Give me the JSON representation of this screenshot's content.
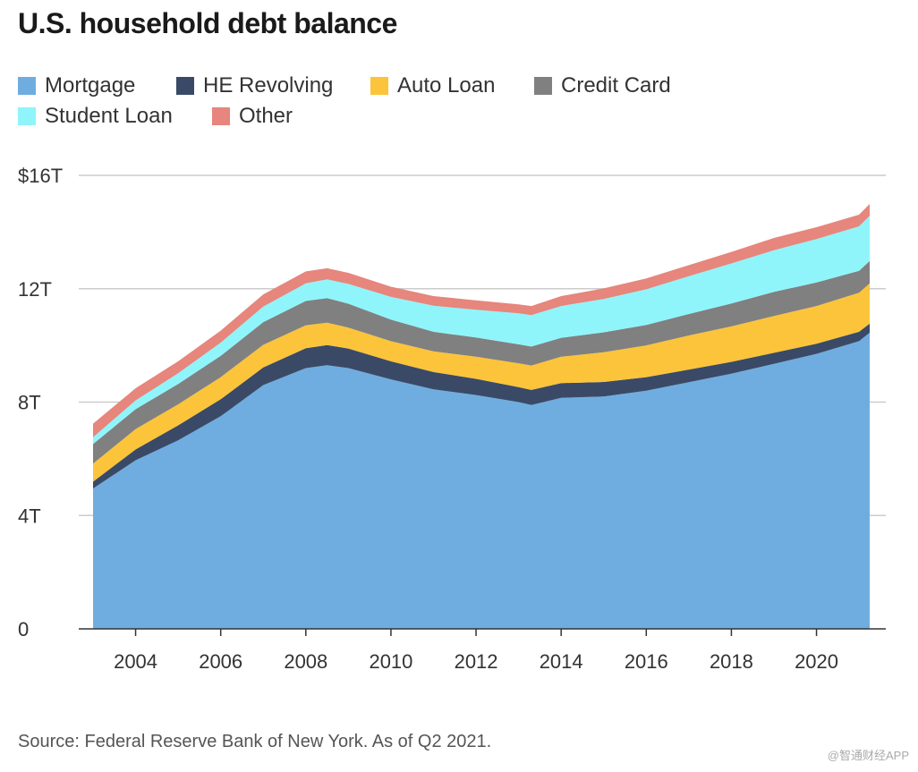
{
  "chart_data": {
    "type": "area",
    "stacked": true,
    "title": "U.S. household debt balance",
    "xlabel": "",
    "ylabel": "",
    "ylim": [
      0,
      16
    ],
    "xlim": [
      2003.0,
      2021.25
    ],
    "yticks": [
      0,
      4,
      8,
      12,
      16
    ],
    "ytick_labels": [
      "0",
      "4T",
      "8T",
      "12T",
      "$16T"
    ],
    "xticks": [
      2004,
      2006,
      2008,
      2010,
      2012,
      2014,
      2016,
      2018,
      2020
    ],
    "xtick_labels": [
      "2004",
      "2006",
      "2008",
      "2010",
      "2012",
      "2014",
      "2016",
      "2018",
      "2020"
    ],
    "x": [
      2003.0,
      2004.0,
      2005.0,
      2006.0,
      2007.0,
      2008.0,
      2008.5,
      2009.0,
      2010.0,
      2011.0,
      2012.0,
      2013.0,
      2013.3,
      2014.0,
      2015.0,
      2016.0,
      2017.0,
      2018.0,
      2019.0,
      2020.0,
      2021.0,
      2021.25
    ],
    "series": [
      {
        "name": "Mortgage",
        "color": "#6fade0",
        "values": [
          4.95,
          5.95,
          6.65,
          7.5,
          8.6,
          9.2,
          9.3,
          9.2,
          8.8,
          8.45,
          8.25,
          8.0,
          7.9,
          8.15,
          8.2,
          8.4,
          8.7,
          9.0,
          9.35,
          9.7,
          10.15,
          10.45
        ]
      },
      {
        "name": "HE Revolving",
        "color": "#3a4a66",
        "values": [
          0.24,
          0.38,
          0.53,
          0.6,
          0.62,
          0.7,
          0.71,
          0.69,
          0.64,
          0.61,
          0.57,
          0.53,
          0.53,
          0.52,
          0.51,
          0.48,
          0.45,
          0.42,
          0.39,
          0.36,
          0.33,
          0.32
        ]
      },
      {
        "name": "Auto Loan",
        "color": "#fbc43a",
        "values": [
          0.64,
          0.72,
          0.74,
          0.78,
          0.8,
          0.81,
          0.79,
          0.74,
          0.71,
          0.73,
          0.78,
          0.84,
          0.86,
          0.93,
          1.05,
          1.12,
          1.2,
          1.25,
          1.3,
          1.33,
          1.38,
          1.42
        ]
      },
      {
        "name": "Credit Card",
        "color": "#808080",
        "values": [
          0.69,
          0.7,
          0.72,
          0.75,
          0.8,
          0.86,
          0.87,
          0.84,
          0.76,
          0.69,
          0.68,
          0.67,
          0.67,
          0.67,
          0.7,
          0.72,
          0.76,
          0.81,
          0.85,
          0.83,
          0.77,
          0.79
        ]
      },
      {
        "name": "Student Loan",
        "color": "#8ff5fb",
        "values": [
          0.24,
          0.31,
          0.38,
          0.47,
          0.55,
          0.62,
          0.66,
          0.7,
          0.8,
          0.92,
          0.98,
          1.09,
          1.11,
          1.12,
          1.18,
          1.26,
          1.33,
          1.41,
          1.47,
          1.53,
          1.57,
          1.59
        ]
      },
      {
        "name": "Other",
        "color": "#e6867c",
        "values": [
          0.48,
          0.43,
          0.42,
          0.42,
          0.43,
          0.42,
          0.39,
          0.39,
          0.36,
          0.34,
          0.33,
          0.32,
          0.32,
          0.35,
          0.37,
          0.38,
          0.39,
          0.41,
          0.43,
          0.42,
          0.41,
          0.42
        ]
      }
    ]
  },
  "source": "Source: Federal Reserve Bank of New York. As of Q2 2021.",
  "watermark": "@智通财经APP"
}
